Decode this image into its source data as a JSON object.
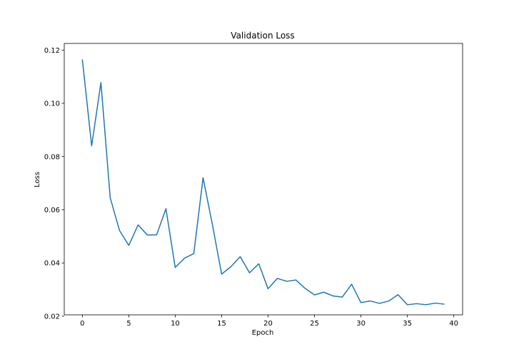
{
  "chart_data": {
    "type": "line",
    "title": "Validation Loss",
    "xlabel": "Epoch",
    "ylabel": "Loss",
    "xlim": [
      -1.95,
      40.95
    ],
    "ylim": [
      0.0205,
      0.1225
    ],
    "xticks": [
      0,
      5,
      10,
      15,
      20,
      25,
      30,
      35,
      40
    ],
    "xtick_labels": [
      "0",
      "5",
      "10",
      "15",
      "20",
      "25",
      "30",
      "35",
      "40"
    ],
    "yticks": [
      0.02,
      0.04,
      0.06,
      0.08,
      0.1,
      0.12
    ],
    "ytick_labels": [
      "0.02",
      "0.04",
      "0.06",
      "0.08",
      "0.10",
      "0.12"
    ],
    "grid": false,
    "line_color": "#1f77b4",
    "x": [
      0,
      1,
      2,
      3,
      4,
      5,
      6,
      7,
      8,
      9,
      10,
      11,
      12,
      13,
      14,
      15,
      16,
      17,
      18,
      19,
      20,
      21,
      22,
      23,
      24,
      25,
      26,
      27,
      28,
      29,
      30,
      31,
      32,
      33,
      34,
      35,
      36,
      37,
      38,
      39
    ],
    "y": [
      0.1165,
      0.084,
      0.1078,
      0.0645,
      0.0522,
      0.0466,
      0.0543,
      0.0505,
      0.0506,
      0.0604,
      0.0383,
      0.0418,
      0.0435,
      0.072,
      0.0545,
      0.0358,
      0.0386,
      0.0424,
      0.0363,
      0.0397,
      0.0303,
      0.0342,
      0.0331,
      0.0336,
      0.0304,
      0.028,
      0.029,
      0.0276,
      0.0272,
      0.032,
      0.0251,
      0.0257,
      0.0248,
      0.0257,
      0.0281,
      0.0243,
      0.0247,
      0.0243,
      0.0249,
      0.0245
    ]
  }
}
